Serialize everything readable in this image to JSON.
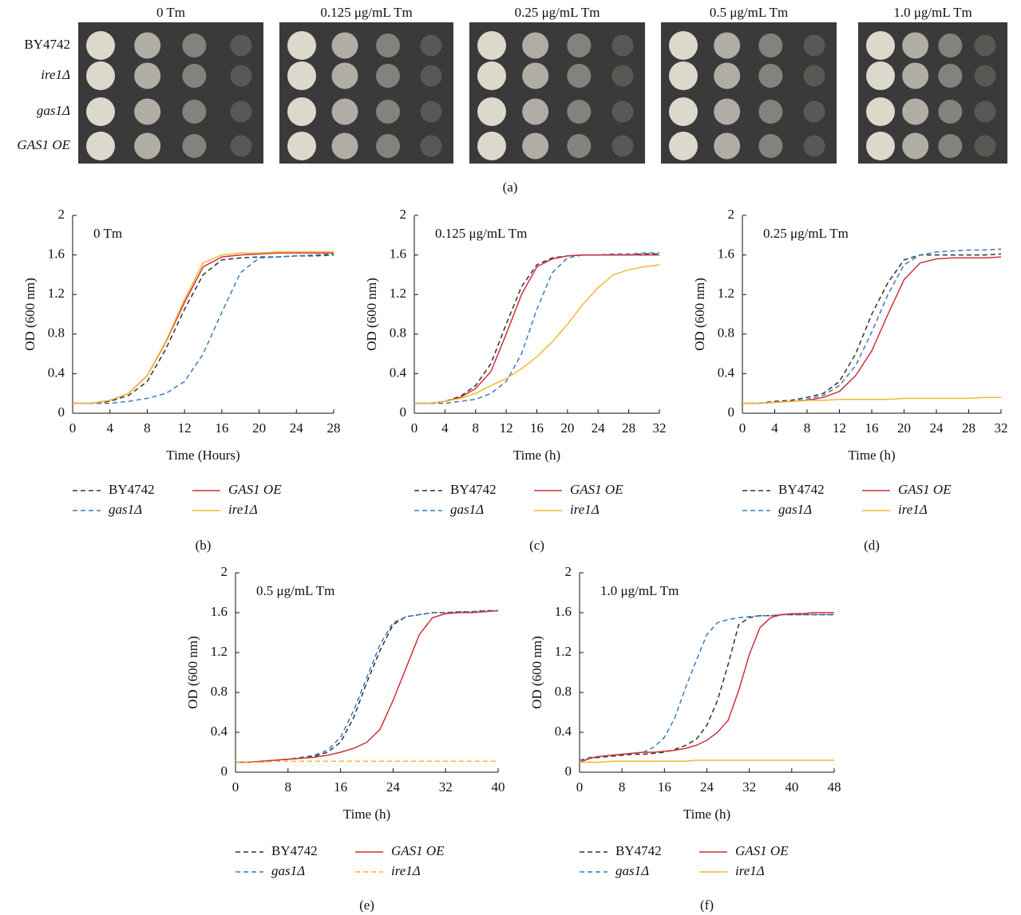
{
  "spot_assay": {
    "conditions": [
      "0 Tm",
      "0.125 μg/mL Tm",
      "0.25 μg/mL Tm",
      "0.5 μg/mL Tm",
      "1.0 μg/mL Tm"
    ],
    "strains": [
      "BY4742",
      "ire1Δ",
      "gas1Δ",
      "GAS1 OE"
    ],
    "caption": "(a)"
  },
  "chart_data": [
    {
      "type": "line",
      "title": "0 Tm",
      "x_label": "Time (Hours)",
      "y_label": "OD (600 nm)",
      "caption": "(b)",
      "x": [
        0,
        2,
        4,
        6,
        8,
        10,
        12,
        14,
        16,
        18,
        20,
        22,
        24,
        26,
        28
      ],
      "xlim": [
        0,
        28
      ],
      "xticks": [
        0,
        4,
        8,
        12,
        16,
        20,
        24,
        28
      ],
      "ylim": [
        0,
        2
      ],
      "yticks": [
        0,
        0.4,
        0.8,
        1.2,
        1.6,
        2
      ],
      "series": [
        {
          "name": "BY4742",
          "color": "#333333",
          "dashed": true,
          "values": [
            0.1,
            0.1,
            0.12,
            0.18,
            0.32,
            0.65,
            1.05,
            1.4,
            1.55,
            1.57,
            1.58,
            1.58,
            1.59,
            1.59,
            1.6
          ]
        },
        {
          "name": "gas1Δ",
          "color": "#3a7cc0",
          "dashed": true,
          "values": [
            0.1,
            0.1,
            0.1,
            0.12,
            0.15,
            0.2,
            0.32,
            0.6,
            1.02,
            1.42,
            1.57,
            1.58,
            1.59,
            1.6,
            1.61
          ]
        },
        {
          "name": "GAS1 OE",
          "color": "#d0303a",
          "dashed": false,
          "values": [
            0.1,
            0.1,
            0.13,
            0.2,
            0.38,
            0.72,
            1.12,
            1.48,
            1.58,
            1.6,
            1.61,
            1.62,
            1.62,
            1.62,
            1.62
          ]
        },
        {
          "name": "ire1Δ",
          "color": "#f2b830",
          "dashed": false,
          "values": [
            0.1,
            0.1,
            0.13,
            0.2,
            0.38,
            0.73,
            1.15,
            1.52,
            1.6,
            1.62,
            1.62,
            1.63,
            1.63,
            1.63,
            1.63
          ]
        }
      ]
    },
    {
      "type": "line",
      "title": "0.125 μg/mL Tm",
      "x_label": "Time (h)",
      "y_label": "OD (600 nm)",
      "caption": "(c)",
      "x": [
        0,
        2,
        4,
        6,
        8,
        10,
        12,
        14,
        16,
        18,
        20,
        22,
        24,
        26,
        28,
        30,
        32
      ],
      "xlim": [
        0,
        32
      ],
      "xticks": [
        0,
        4,
        8,
        12,
        16,
        20,
        24,
        28,
        32
      ],
      "ylim": [
        0,
        2
      ],
      "yticks": [
        0,
        0.4,
        0.8,
        1.2,
        1.6,
        2
      ],
      "series": [
        {
          "name": "BY4742",
          "color": "#333333",
          "dashed": true,
          "values": [
            0.1,
            0.1,
            0.12,
            0.17,
            0.28,
            0.5,
            0.9,
            1.28,
            1.5,
            1.57,
            1.59,
            1.6,
            1.6,
            1.6,
            1.6,
            1.61,
            1.61
          ]
        },
        {
          "name": "gas1Δ",
          "color": "#3a7cc0",
          "dashed": true,
          "values": [
            0.1,
            0.1,
            0.1,
            0.12,
            0.14,
            0.2,
            0.32,
            0.6,
            1.05,
            1.42,
            1.57,
            1.6,
            1.6,
            1.61,
            1.61,
            1.62,
            1.62
          ]
        },
        {
          "name": "GAS1 OE",
          "color": "#d0303a",
          "dashed": false,
          "values": [
            0.1,
            0.1,
            0.12,
            0.16,
            0.25,
            0.42,
            0.8,
            1.2,
            1.48,
            1.56,
            1.59,
            1.6,
            1.6,
            1.6,
            1.6,
            1.6,
            1.6
          ]
        },
        {
          "name": "ire1Δ",
          "color": "#f2b830",
          "dashed": false,
          "values": [
            0.1,
            0.1,
            0.12,
            0.15,
            0.2,
            0.28,
            0.35,
            0.45,
            0.57,
            0.72,
            0.9,
            1.1,
            1.27,
            1.4,
            1.45,
            1.48,
            1.5
          ]
        }
      ]
    },
    {
      "type": "line",
      "title": "0.25 μg/mL Tm",
      "x_label": "Time (h)",
      "y_label": "OD (600 nm)",
      "caption": "(d)",
      "x": [
        0,
        2,
        4,
        6,
        8,
        10,
        12,
        14,
        16,
        18,
        20,
        22,
        24,
        26,
        28,
        30,
        32
      ],
      "xlim": [
        0,
        32
      ],
      "xticks": [
        0,
        4,
        8,
        12,
        16,
        20,
        24,
        28,
        32
      ],
      "ylim": [
        0,
        2
      ],
      "yticks": [
        0,
        0.4,
        0.8,
        1.2,
        1.6,
        2
      ],
      "series": [
        {
          "name": "BY4742",
          "color": "#333333",
          "dashed": true,
          "values": [
            0.1,
            0.1,
            0.12,
            0.13,
            0.16,
            0.2,
            0.32,
            0.6,
            1.0,
            1.32,
            1.55,
            1.6,
            1.6,
            1.6,
            1.6,
            1.6,
            1.61
          ]
        },
        {
          "name": "gas1Δ",
          "color": "#3a7cc0",
          "dashed": true,
          "values": [
            0.1,
            0.1,
            0.11,
            0.12,
            0.14,
            0.18,
            0.28,
            0.48,
            0.82,
            1.2,
            1.5,
            1.6,
            1.63,
            1.64,
            1.65,
            1.65,
            1.66
          ]
        },
        {
          "name": "GAS1 OE",
          "color": "#d0303a",
          "dashed": false,
          "values": [
            0.1,
            0.1,
            0.11,
            0.12,
            0.13,
            0.16,
            0.22,
            0.38,
            0.63,
            1.0,
            1.35,
            1.52,
            1.56,
            1.57,
            1.57,
            1.57,
            1.58
          ]
        },
        {
          "name": "ire1Δ",
          "color": "#f2b830",
          "dashed": false,
          "values": [
            0.1,
            0.1,
            0.11,
            0.12,
            0.13,
            0.13,
            0.14,
            0.14,
            0.14,
            0.14,
            0.15,
            0.15,
            0.15,
            0.15,
            0.15,
            0.16,
            0.16
          ]
        }
      ]
    },
    {
      "type": "line",
      "title": "0.5 μg/mL Tm",
      "x_label": "Time (h)",
      "y_label": "OD (600 nm)",
      "caption": "(e)",
      "x": [
        0,
        2,
        4,
        6,
        8,
        10,
        12,
        14,
        16,
        18,
        20,
        22,
        24,
        26,
        28,
        30,
        32,
        34,
        36,
        38,
        40
      ],
      "xlim": [
        0,
        40
      ],
      "xticks": [
        0,
        8,
        16,
        24,
        32,
        40
      ],
      "ylim": [
        0,
        2
      ],
      "yticks": [
        0,
        0.4,
        0.8,
        1.2,
        1.6,
        2
      ],
      "series": [
        {
          "name": "BY4742",
          "color": "#333333",
          "dashed": true,
          "values": [
            0.1,
            0.1,
            0.11,
            0.12,
            0.13,
            0.14,
            0.16,
            0.2,
            0.3,
            0.55,
            0.9,
            1.22,
            1.48,
            1.56,
            1.58,
            1.6,
            1.6,
            1.61,
            1.61,
            1.62,
            1.62
          ]
        },
        {
          "name": "gas1Δ",
          "color": "#3a7cc0",
          "dashed": true,
          "values": [
            0.1,
            0.1,
            0.11,
            0.12,
            0.13,
            0.15,
            0.17,
            0.22,
            0.35,
            0.62,
            0.95,
            1.28,
            1.5,
            1.56,
            1.58,
            1.6,
            1.6,
            1.61,
            1.61,
            1.62,
            1.62
          ]
        },
        {
          "name": "GAS1 OE",
          "color": "#d0303a",
          "dashed": false,
          "values": [
            0.1,
            0.1,
            0.11,
            0.12,
            0.13,
            0.14,
            0.15,
            0.17,
            0.2,
            0.24,
            0.3,
            0.43,
            0.72,
            1.05,
            1.38,
            1.55,
            1.59,
            1.6,
            1.6,
            1.61,
            1.62
          ]
        },
        {
          "name": "ire1Δ",
          "color": "#f2b830",
          "dashed": true,
          "values": [
            0.1,
            0.1,
            0.1,
            0.11,
            0.11,
            0.11,
            0.11,
            0.11,
            0.11,
            0.11,
            0.11,
            0.11,
            0.11,
            0.11,
            0.11,
            0.11,
            0.11,
            0.11,
            0.11,
            0.11,
            0.11
          ]
        }
      ]
    },
    {
      "type": "line",
      "title": "1.0 μg/mL Tm",
      "x_label": "Time (h)",
      "y_label": "OD (600 nm)",
      "caption": "(f)",
      "x": [
        0,
        2,
        4,
        6,
        8,
        10,
        12,
        14,
        16,
        18,
        20,
        22,
        24,
        26,
        28,
        30,
        32,
        34,
        36,
        38,
        40,
        42,
        44,
        46,
        48
      ],
      "xlim": [
        0,
        48
      ],
      "xticks": [
        0,
        8,
        16,
        24,
        32,
        40,
        48
      ],
      "ylim": [
        0,
        2
      ],
      "yticks": [
        0,
        0.4,
        0.8,
        1.2,
        1.6,
        2
      ],
      "series": [
        {
          "name": "BY4742",
          "color": "#333333",
          "dashed": true,
          "values": [
            0.12,
            0.14,
            0.15,
            0.16,
            0.17,
            0.18,
            0.18,
            0.19,
            0.2,
            0.23,
            0.27,
            0.33,
            0.47,
            0.72,
            1.08,
            1.48,
            1.55,
            1.57,
            1.57,
            1.58,
            1.58,
            1.58,
            1.58,
            1.58,
            1.58
          ]
        },
        {
          "name": "gas1Δ",
          "color": "#3a7cc0",
          "dashed": true,
          "values": [
            0.12,
            0.15,
            0.16,
            0.17,
            0.18,
            0.19,
            0.2,
            0.25,
            0.35,
            0.55,
            0.85,
            1.12,
            1.38,
            1.5,
            1.53,
            1.55,
            1.56,
            1.57,
            1.57,
            1.58,
            1.58,
            1.58,
            1.58,
            1.58,
            1.58
          ]
        },
        {
          "name": "GAS1 OE",
          "color": "#d0303a",
          "dashed": false,
          "values": [
            0.1,
            0.14,
            0.16,
            0.17,
            0.18,
            0.19,
            0.2,
            0.2,
            0.21,
            0.22,
            0.24,
            0.27,
            0.32,
            0.4,
            0.52,
            0.82,
            1.18,
            1.45,
            1.55,
            1.58,
            1.59,
            1.59,
            1.6,
            1.6,
            1.6
          ]
        },
        {
          "name": "ire1Δ",
          "color": "#f2b830",
          "dashed": false,
          "values": [
            0.1,
            0.1,
            0.1,
            0.11,
            0.11,
            0.11,
            0.11,
            0.11,
            0.11,
            0.11,
            0.11,
            0.12,
            0.12,
            0.12,
            0.12,
            0.12,
            0.12,
            0.12,
            0.12,
            0.12,
            0.12,
            0.12,
            0.12,
            0.12,
            0.12
          ]
        }
      ]
    }
  ]
}
